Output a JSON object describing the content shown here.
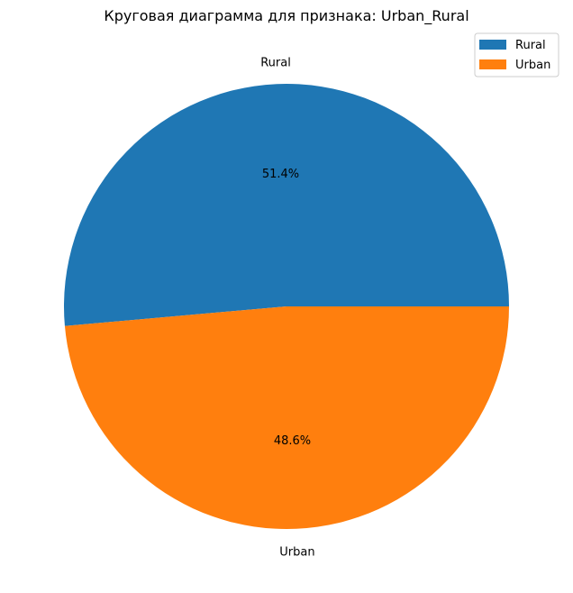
{
  "chart_data": {
    "type": "pie",
    "title": "Круговая диаграмма для признака: Urban_Rural",
    "slices": [
      {
        "label": "Rural",
        "value": 51.4,
        "pct_label": "51.4%",
        "color": "#1f77b4"
      },
      {
        "label": "Urban",
        "value": 48.6,
        "pct_label": "48.6%",
        "color": "#ff7f0e"
      }
    ],
    "start_angle_deg": 0,
    "direction": "counterclockwise",
    "legend": {
      "placement": "top-right",
      "entries": [
        "Rural",
        "Urban"
      ]
    }
  }
}
